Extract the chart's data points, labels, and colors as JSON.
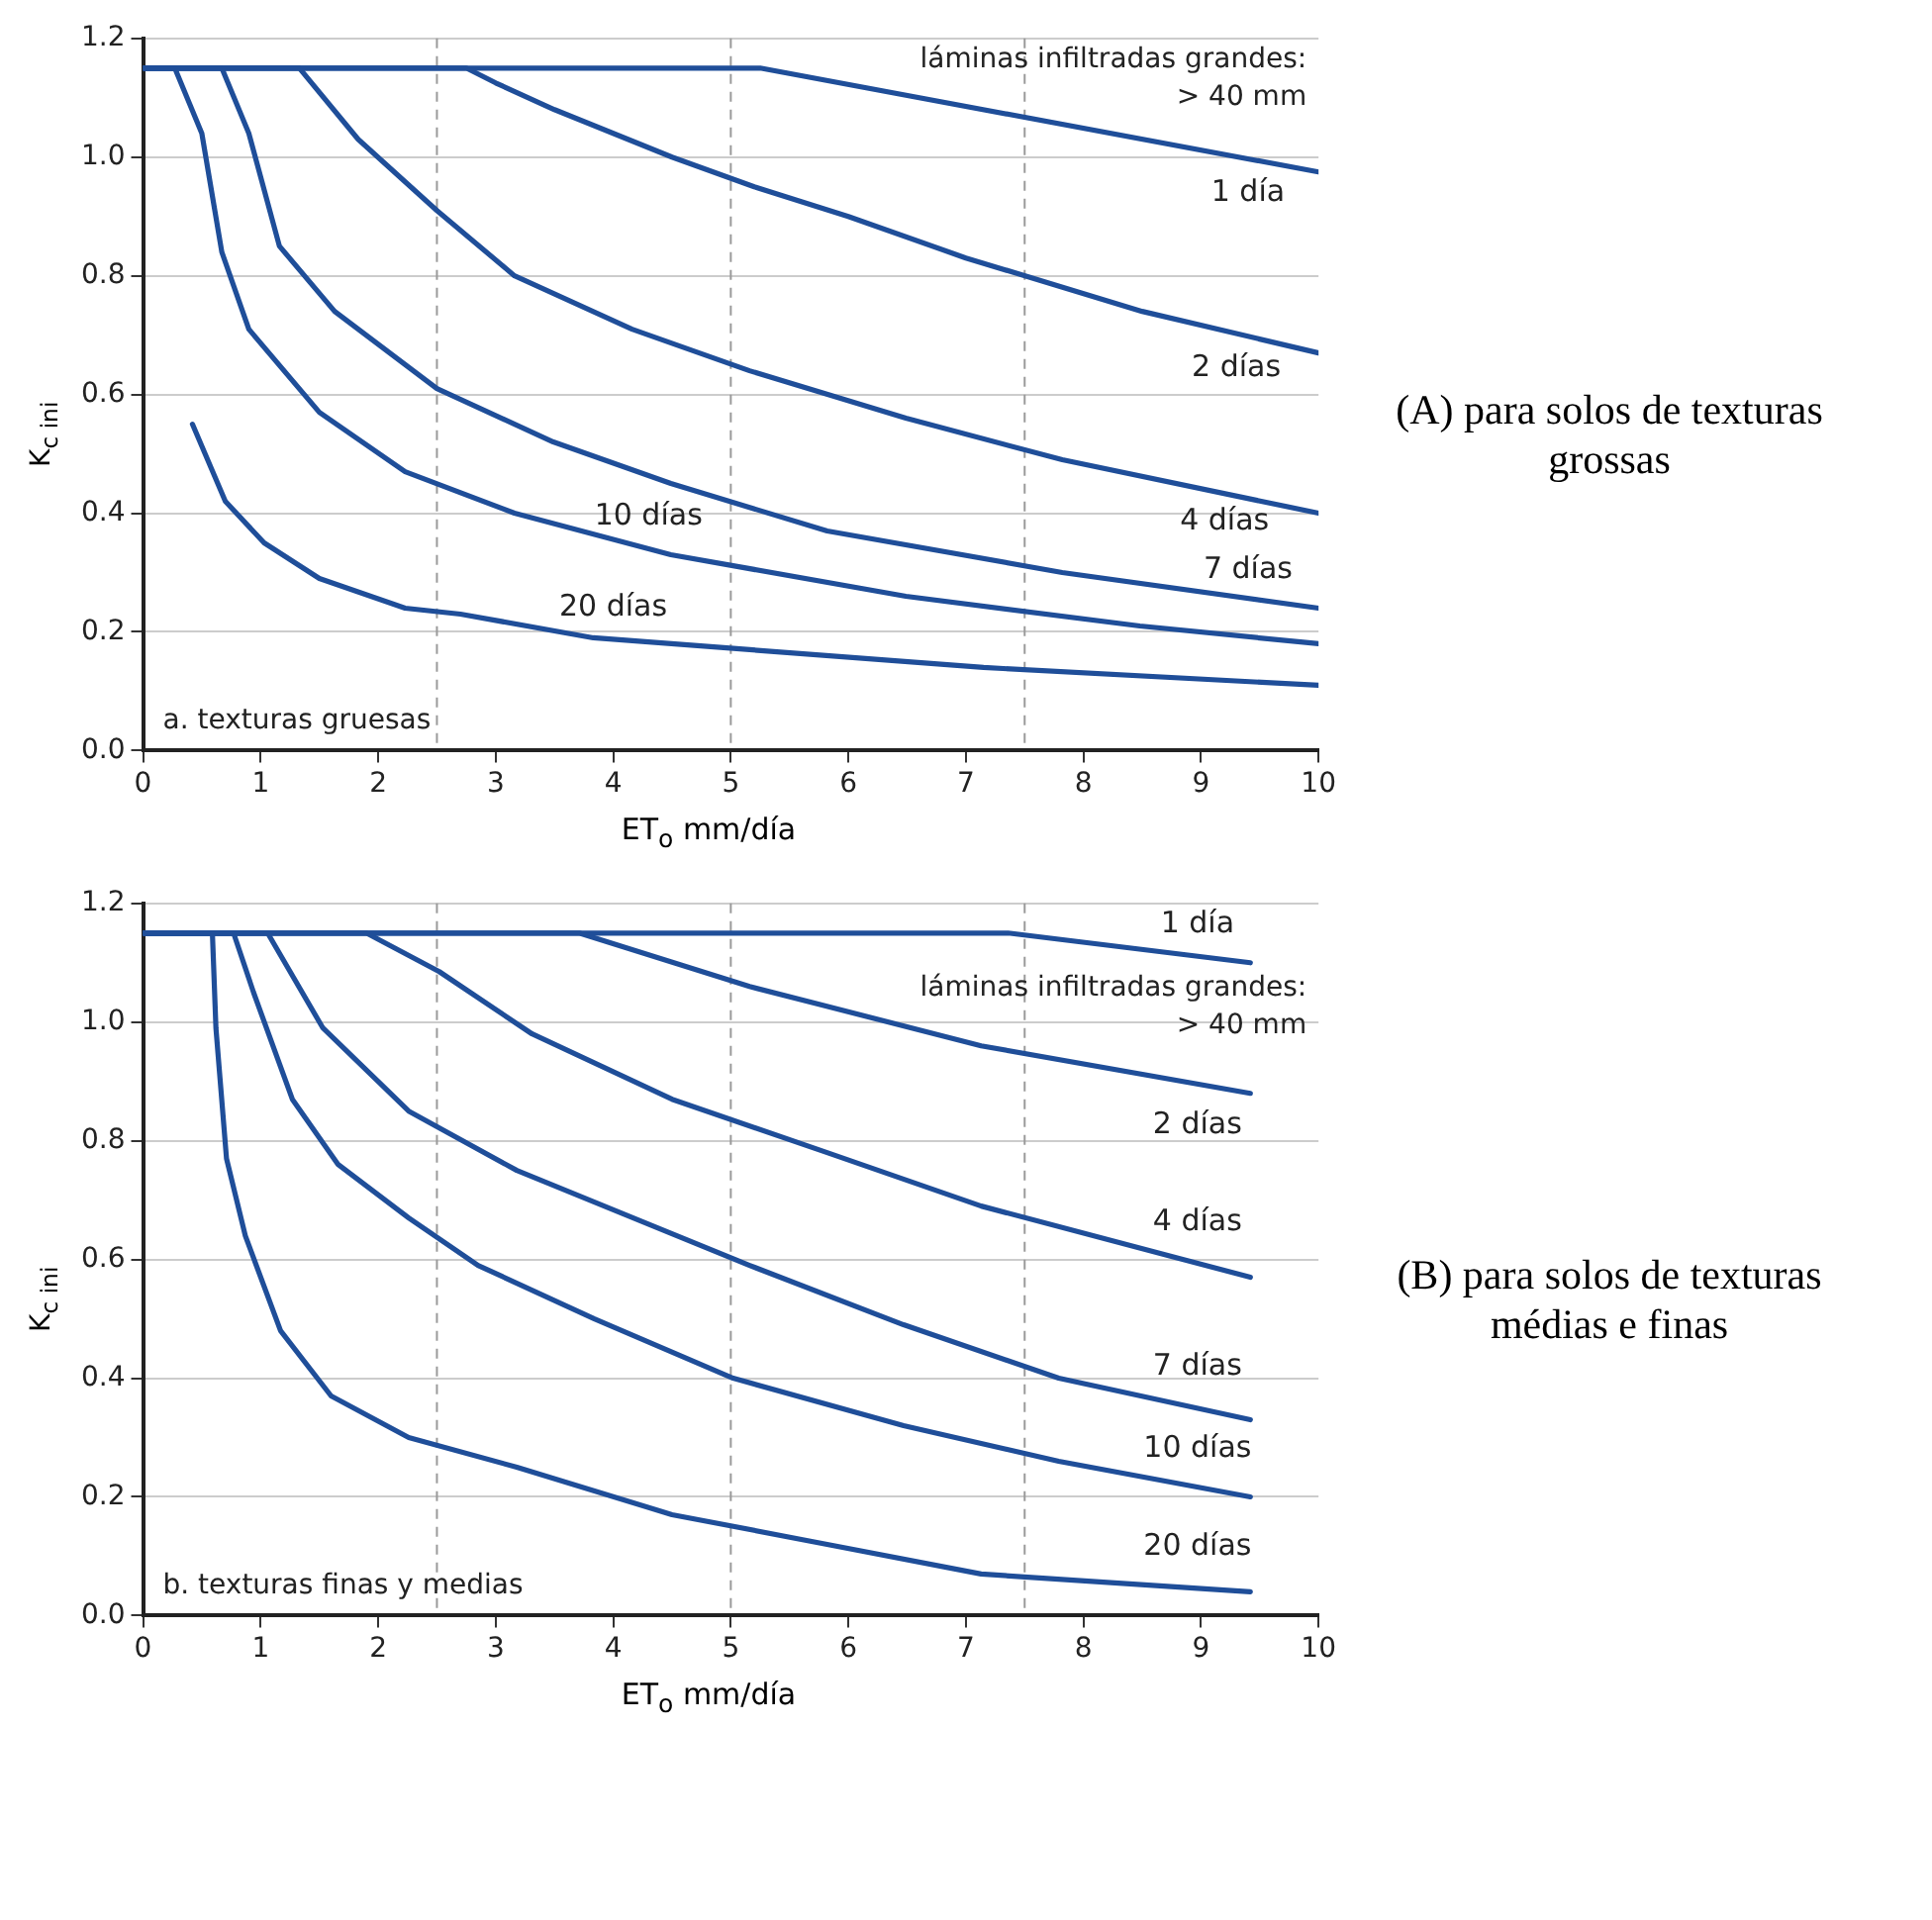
{
  "chart_data": [
    {
      "type": "line",
      "xlabel": "ET$_{o}$ mm/día",
      "ylabel": "K$_{c ini}$",
      "xlim": [
        0,
        10
      ],
      "ylim": [
        0,
        1.2
      ],
      "xticks": [
        0,
        1,
        2,
        3,
        4,
        5,
        6,
        7,
        8,
        9,
        10
      ],
      "yticks": [
        {
          "value": 0,
          "label": "0.0"
        },
        {
          "value": 0.2,
          "label": "0.2"
        },
        {
          "value": 0.4,
          "label": "0.4"
        },
        {
          "value": 0.6,
          "label": "0.6"
        },
        {
          "value": 0.8,
          "label": "0.8"
        },
        {
          "value": 1,
          "label": "1.0"
        },
        {
          "value": 1.2,
          "label": "1.2"
        }
      ],
      "grid": "y",
      "marker": "none",
      "line_style": "solid",
      "legend": false,
      "ref_lines": [
        {
          "axis": "x",
          "value": 2.5,
          "color": "#9a9a9a",
          "line_style": "dashed"
        },
        {
          "axis": "x",
          "value": 5,
          "color": "#9a9a9a",
          "line_style": "dashed"
        },
        {
          "axis": "x",
          "value": 7.5,
          "color": "#9a9a9a",
          "line_style": "dashed"
        }
      ],
      "annotations": [
        "láminas infiltradas grandes: > 40 mm",
        "a. texturas gruesas",
        "(A) para solos de texturas grossas"
      ],
      "series": [
        {
          "name": "1 día",
          "color": "#1f4e99",
          "x": [
            0,
            5.25,
            10
          ],
          "values": [
            1.15,
            1.15,
            0.975
          ]
        },
        {
          "name": "2 días",
          "color": "#1f4e99",
          "x": [
            0,
            2.75,
            3.0,
            3.5,
            4.5,
            5.2,
            6,
            7,
            8.5,
            10
          ],
          "values": [
            1.15,
            1.15,
            1.125,
            1.08,
            1.0,
            0.95,
            0.9,
            0.83,
            0.74,
            0.67
          ]
        },
        {
          "name": "4 días",
          "color": "#1f4e99",
          "x": [
            0,
            1.33,
            1.83,
            2.5,
            3.16,
            4.16,
            5.16,
            6.49,
            7.82,
            10
          ],
          "values": [
            1.15,
            1.15,
            1.03,
            0.91,
            0.8,
            0.71,
            0.64,
            0.56,
            0.49,
            0.4
          ]
        },
        {
          "name": "7 días",
          "color": "#1f4e99",
          "x": [
            0,
            0.67,
            0.9,
            1.16,
            1.63,
            2.5,
            3.49,
            4.49,
            5.82,
            7.82,
            10
          ],
          "values": [
            1.15,
            1.15,
            1.04,
            0.85,
            0.74,
            0.61,
            0.52,
            0.45,
            0.37,
            0.3,
            0.24
          ]
        },
        {
          "name": "10 días",
          "color": "#1f4e99",
          "x": [
            0,
            0.27,
            0.5,
            0.67,
            0.9,
            1.5,
            2.23,
            3.16,
            4.49,
            6.49,
            8.48,
            10
          ],
          "values": [
            1.15,
            1.15,
            1.04,
            0.84,
            0.71,
            0.57,
            0.47,
            0.4,
            0.33,
            0.26,
            0.21,
            0.18
          ]
        },
        {
          "name": "20 días",
          "color": "#1f4e99",
          "x": [
            0.42,
            0.7,
            1.03,
            1.5,
            2.23,
            2.7,
            3.83,
            5.16,
            7.15,
            10
          ],
          "values": [
            0.55,
            0.42,
            0.35,
            0.29,
            0.24,
            0.23,
            0.19,
            0.17,
            0.14,
            0.11
          ]
        }
      ]
    },
    {
      "type": "line",
      "xlabel": "ET$_{o}$ mm/día",
      "ylabel": "K$_{c ini}$",
      "xlim": [
        0,
        10
      ],
      "ylim": [
        0,
        1.2
      ],
      "xticks": [
        0,
        1,
        2,
        3,
        4,
        5,
        6,
        7,
        8,
        9,
        10
      ],
      "yticks": [
        {
          "value": 0,
          "label": "0.0"
        },
        {
          "value": 0.2,
          "label": "0.2"
        },
        {
          "value": 0.4,
          "label": "0.4"
        },
        {
          "value": 0.6,
          "label": "0.6"
        },
        {
          "value": 0.8,
          "label": "0.8"
        },
        {
          "value": 1,
          "label": "1.0"
        },
        {
          "value": 1.2,
          "label": "1.2"
        }
      ],
      "grid": "y",
      "marker": "none",
      "line_style": "solid",
      "legend": false,
      "ref_lines": [
        {
          "axis": "x",
          "value": 2.5,
          "color": "#9a9a9a",
          "line_style": "dashed"
        },
        {
          "axis": "x",
          "value": 5,
          "color": "#9a9a9a",
          "line_style": "dashed"
        },
        {
          "axis": "x",
          "value": 7.5,
          "color": "#9a9a9a",
          "line_style": "dashed"
        }
      ],
      "annotations": [
        "láminas infiltradas grandes: > 40 mm",
        "b. texturas finas y medias",
        "(B) para solos de texturas médias e finas"
      ],
      "series": [
        {
          "name": "1 día",
          "color": "#1f4e99",
          "x": [
            0,
            7.36,
            9.42
          ],
          "values": [
            1.15,
            1.15,
            1.1
          ]
        },
        {
          "name": "2 días",
          "color": "#1f4e99",
          "x": [
            0,
            3.71,
            5.16,
            7.13,
            9.42
          ],
          "values": [
            1.15,
            1.15,
            1.06,
            0.96,
            0.88
          ]
        },
        {
          "name": "4 días",
          "color": "#1f4e99",
          "x": [
            0,
            1.9,
            2.52,
            3.31,
            4.5,
            5.82,
            7.13,
            9.42
          ],
          "values": [
            1.15,
            1.15,
            1.085,
            0.98,
            0.87,
            0.78,
            0.69,
            0.57
          ]
        },
        {
          "name": "7 días",
          "color": "#1f4e99",
          "x": [
            0,
            1.06,
            1.53,
            2.26,
            3.18,
            4.17,
            5.16,
            6.47,
            7.79,
            9.42
          ],
          "values": [
            1.15,
            1.15,
            0.99,
            0.85,
            0.75,
            0.67,
            0.59,
            0.49,
            0.4,
            0.33
          ]
        },
        {
          "name": "10 días",
          "color": "#1f4e99",
          "x": [
            0,
            0.77,
            0.94,
            1.27,
            1.66,
            2.26,
            2.85,
            3.84,
            5.02,
            6.47,
            7.79,
            9.42
          ],
          "values": [
            1.15,
            1.15,
            1.05,
            0.87,
            0.76,
            0.67,
            0.59,
            0.5,
            0.4,
            0.32,
            0.26,
            0.2
          ]
        },
        {
          "name": "20 días",
          "color": "#1f4e99",
          "x": [
            0,
            0.59,
            0.62,
            0.71,
            0.87,
            1.17,
            1.6,
            2.26,
            3.18,
            4.5,
            5.82,
            7.13,
            9.42
          ],
          "values": [
            1.15,
            1.15,
            0.99,
            0.77,
            0.64,
            0.48,
            0.37,
            0.3,
            0.25,
            0.17,
            0.12,
            0.07,
            0.04
          ]
        }
      ]
    }
  ]
}
